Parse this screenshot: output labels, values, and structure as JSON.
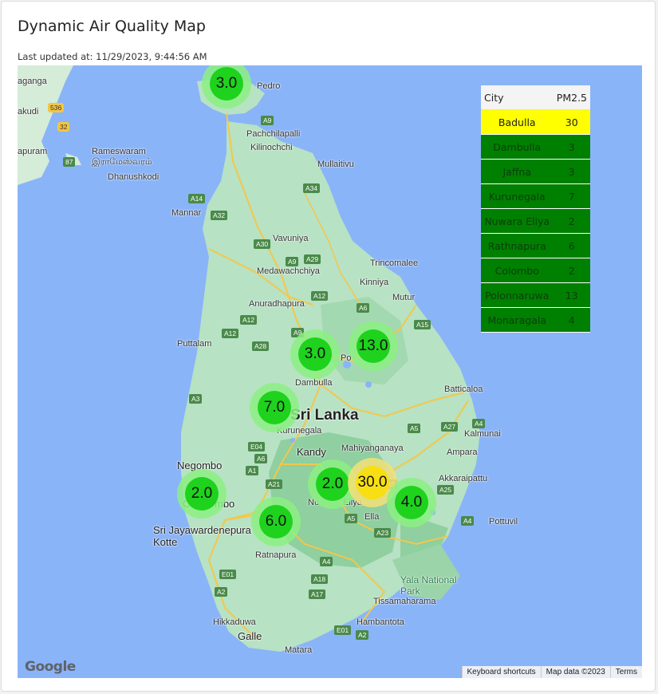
{
  "page": {
    "title": "Dynamic Air Quality Map",
    "last_updated": "Last updated at: 11/29/2023, 9:44:56 AM"
  },
  "colors": {
    "good": "#008000",
    "moderate": "#ffff00",
    "water": "#8ab4f8",
    "land": "#b7e2c4"
  },
  "table": {
    "headers": {
      "city": "City",
      "pm": "PM2.5"
    },
    "rows": [
      {
        "city": "Badulla",
        "pm": "30",
        "level": "yellow"
      },
      {
        "city": "Dambulla",
        "pm": "3",
        "level": "green"
      },
      {
        "city": "Jaffna",
        "pm": "3",
        "level": "green"
      },
      {
        "city": "Kurunegala",
        "pm": "7",
        "level": "green"
      },
      {
        "city": "Nuwara Eliya",
        "pm": "2",
        "level": "green"
      },
      {
        "city": "Rathnapura",
        "pm": "6",
        "level": "green"
      },
      {
        "city": "Colombo",
        "pm": "2",
        "level": "green"
      },
      {
        "city": "Polonnaruwa",
        "pm": "13",
        "level": "green"
      },
      {
        "city": "Monaragala",
        "pm": "4",
        "level": "green"
      }
    ]
  },
  "markers": [
    {
      "city": "Jaffna",
      "value": "3.0",
      "level": "good"
    },
    {
      "city": "Dambulla",
      "value": "3.0",
      "level": "good"
    },
    {
      "city": "Polonnaruwa",
      "value": "13.0",
      "level": "good"
    },
    {
      "city": "Kurunegala",
      "value": "7.0",
      "level": "good"
    },
    {
      "city": "Colombo",
      "value": "2.0",
      "level": "good"
    },
    {
      "city": "Nuwara Eliya",
      "value": "2.0",
      "level": "good"
    },
    {
      "city": "Badulla",
      "value": "30.0",
      "level": "moderate"
    },
    {
      "city": "Monaragala",
      "value": "4.0",
      "level": "good"
    },
    {
      "city": "Rathnapura",
      "value": "6.0",
      "level": "good"
    }
  ],
  "map_labels": {
    "country": "Sri Lanka",
    "places": [
      "Pedro",
      "Pachchilapalli",
      "Kilinochchi",
      "Mullaitivu",
      "Rameswaram",
      "இராமேஸ்வரம்",
      "Dhanushkodi",
      "Mannar",
      "Vavuniya",
      "Medawachchiya",
      "Trincomalee",
      "Kinniya",
      "Anuradhapura",
      "Mutur",
      "Puttalam",
      "Dambulla",
      "Batticaloa",
      "Kurunegala",
      "Kalmunai",
      "Mahiyanganaya",
      "Negombo",
      "Kandy",
      "Ampara",
      "Akkaraipattu",
      "Sri Jayawardenepura Kotte",
      "Ratnapura",
      "Pottuvil",
      "Ella",
      "Yala National Park",
      "Tissamaharama",
      "Hikkaduwa",
      "Hambantota",
      "Galle",
      "Matara",
      "aganga",
      "akudi",
      "apuram",
      "Nu",
      "Eliya",
      "Co",
      "mbo",
      "Po"
    ],
    "roads": [
      "536",
      "32",
      "87",
      "A9",
      "A34",
      "A14",
      "A32",
      "A30",
      "A29",
      "A9",
      "A12",
      "A6",
      "A15",
      "A12",
      "A12",
      "A9",
      "A28",
      "A3",
      "A5",
      "A27",
      "A4",
      "E04",
      "A6",
      "A1",
      "A21",
      "A5",
      "A25",
      "A4",
      "A5",
      "A23",
      "E01",
      "A18",
      "A17",
      "A2",
      "A2",
      "E01",
      "A4"
    ]
  },
  "attribution": {
    "logo": "Google",
    "keyboard": "Keyboard shortcuts",
    "map_data": "Map data ©2023",
    "terms": "Terms"
  }
}
